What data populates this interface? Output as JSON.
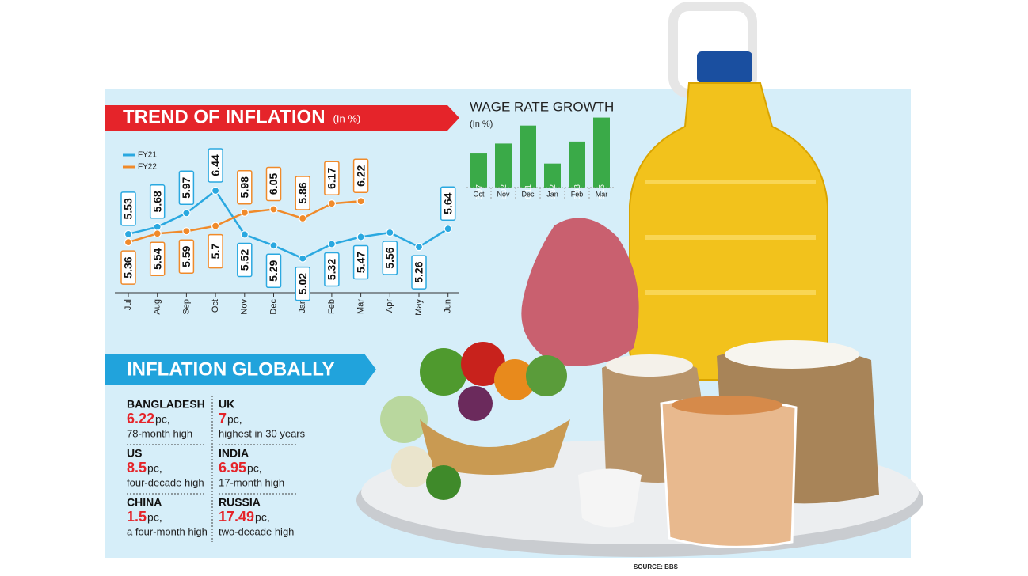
{
  "chart_data": [
    {
      "type": "line",
      "title": "TREND OF INFLATION",
      "subtitle": "(In %)",
      "categories": [
        "Jul",
        "Aug",
        "Sep",
        "Oct",
        "Nov",
        "Dec",
        "Jan",
        "Feb",
        "Mar",
        "Apr",
        "May",
        "Jun"
      ],
      "series": [
        {
          "name": "FY21",
          "color": "#2aa8e0",
          "values": [
            5.53,
            5.68,
            5.97,
            6.44,
            5.52,
            5.29,
            5.02,
            5.32,
            5.47,
            5.56,
            5.26,
            5.64
          ]
        },
        {
          "name": "FY22",
          "color": "#f08a2a",
          "values": [
            5.36,
            5.54,
            5.59,
            5.7,
            5.98,
            6.05,
            5.86,
            6.17,
            6.22,
            null,
            null,
            null
          ]
        }
      ],
      "ylim": [
        4.3,
        7.7
      ],
      "legend": "upper left"
    },
    {
      "type": "bar",
      "title": "WAGE RATE GROWTH",
      "subtitle": "(In %)",
      "categories": [
        "Oct",
        "Nov",
        "Dec",
        "Jan",
        "Feb",
        "Mar"
      ],
      "values": [
        5.97,
        6.02,
        6.11,
        5.92,
        6.03,
        6.15
      ],
      "color": "#3aaa48",
      "ylim": [
        5.8,
        6.18
      ]
    }
  ],
  "globally": {
    "title": "INFLATION GLOBALLY",
    "items": [
      {
        "country": "BANGLADESH",
        "value": "6.22",
        "unit": "pc,",
        "note": "78-month high"
      },
      {
        "country": "US",
        "value": "8.5",
        "unit": "pc,",
        "note": "four-decade high"
      },
      {
        "country": "CHINA",
        "value": "1.5",
        "unit": "pc,",
        "note": "a four-month high"
      },
      {
        "country": "UK",
        "value": "7",
        "unit": "pc,",
        "note": "highest in 30 years"
      },
      {
        "country": "INDIA",
        "value": "6.95",
        "unit": "pc,",
        "note": "17-month high"
      },
      {
        "country": "RUSSIA",
        "value": "17.49",
        "unit": "pc,",
        "note": "two-decade high"
      }
    ]
  },
  "source": "SOURCE: BBS"
}
